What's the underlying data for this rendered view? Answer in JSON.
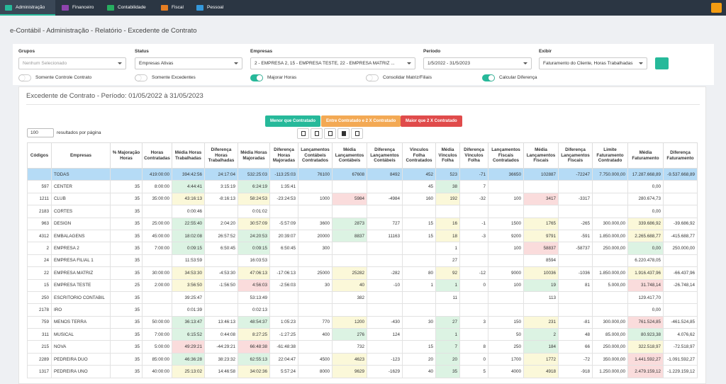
{
  "nav": {
    "tabs": [
      "Administração",
      "Financeiro",
      "Contabilidade",
      "Fiscal",
      "Pessoal"
    ],
    "active": 0
  },
  "breadcrumb": "e-Contábil - Administração - Relatório - Excedente de Contrato",
  "filters": {
    "fields": [
      {
        "label": "Grupos",
        "value": "Nenhum Selecionado"
      },
      {
        "label": "Status",
        "value": "Empresas Ativas"
      },
      {
        "label": "Empresas",
        "value": "2 - EMPRESA 2, 15 - EMPRESA TESTE, 22 - EMPRESA MATRIZ ..."
      },
      {
        "label": "Período",
        "value": "1/5/2022 - 31/5/2023"
      },
      {
        "label": "Exibir",
        "value": "Faturamento do Cliente, Horas Trabalhadas"
      }
    ],
    "toggles": [
      {
        "label": "Somente Controle Contrato",
        "on": false
      },
      {
        "label": "Somente Excedentes",
        "on": false
      },
      {
        "label": "Majorar Horas",
        "on": true
      },
      {
        "label": "Consolidar Matriz/Filiais",
        "on": false
      },
      {
        "label": "Calcular Diferença",
        "on": true
      }
    ]
  },
  "report": {
    "title": "Excedente de Contrato - Período: 01/05/2022 à 31/05/2023",
    "legend": [
      {
        "label": "Menor que Contratado",
        "color": "#26b99a"
      },
      {
        "label": "Entre Contratado e 2 X Contratado",
        "color": "#f3a954"
      },
      {
        "label": "Maior que 2 X Contratado",
        "color": "#e04b4b"
      }
    ],
    "page_size": "100",
    "page_size_label": "resultados por página",
    "tones": {
      "green": "#dcf3e3",
      "yellow": "#fbf8d9",
      "red": "#fadcdc"
    },
    "table": {
      "headers": [
        "Códigos",
        "Empresas",
        "% Majoração Horas",
        "Horas Contratadas",
        "Média Horas Trabalhadas",
        "Diferença Horas Trabalhadas",
        "Média Horas Majoradas",
        "Diferença Horas Majoradas",
        "Lançamentos Contábeis Contratados",
        "Média Lançamentos Contábeis",
        "Diferença Lançamentos Contábeis",
        "Vínculos Folha Contratados",
        "Média Vínculos Folha",
        "Diferença Vínculos Folha",
        "Lançamentos Fiscais Contratados",
        "Média Lançamentos Fiscais",
        "Diferença Lançamentos Fiscais",
        "Limite Faturamento Contratado",
        "Média Faturamento",
        "Diferença Faturamento"
      ],
      "rows": [
        {
          "highlight": "#b5dbf6",
          "cells": [
            null,
            "TODAS",
            null,
            "419:00:00",
            "394:42:56",
            "24:17:04",
            "532:25:03",
            "-113:25:03",
            "76100",
            "67608",
            "8492",
            "452",
            "523",
            "-71",
            "36650",
            "102887",
            "-72247",
            "7.750.000,00",
            "17.287.668,89",
            "-9.537.668,89"
          ]
        },
        {
          "cells": [
            "597",
            "CENTER",
            "35",
            "8:00:00",
            "4:44:41",
            "3:15:19",
            "6:24:19",
            "1:35:41",
            null,
            null,
            null,
            "45",
            "38",
            "7",
            null,
            null,
            null,
            null,
            "0,00",
            null
          ],
          "colors": {
            "4": "green",
            "6": "green",
            "12": "green"
          }
        },
        {
          "cells": [
            "1211",
            "CLUB",
            "35",
            "35:00:00",
            "43:16:13",
            "-8:16:13",
            "58:24:53",
            "-23:24:53",
            "1000",
            "5984",
            "-4984",
            "160",
            "192",
            "-32",
            "100",
            "3417",
            "-3317",
            null,
            "280.674,73",
            null
          ],
          "colors": {
            "4": "yellow",
            "6": "yellow",
            "9": "red",
            "12": "yellow",
            "15": "red"
          }
        },
        {
          "cells": [
            "2183",
            "CORTES",
            "35",
            null,
            "0:00:46",
            null,
            "0:01:02",
            null,
            null,
            null,
            null,
            null,
            null,
            null,
            null,
            null,
            null,
            null,
            "0,00",
            null
          ]
        },
        {
          "cells": [
            "963",
            "DESIGN",
            "35",
            "25:00:00",
            "22:55:40",
            "2:04:20",
            "30:57:09",
            "-5:57:09",
            "3600",
            "2873",
            "727",
            "15",
            "16",
            "-1",
            "1500",
            "1765",
            "-265",
            "300.000,00",
            "339.686,92",
            "-39.686,92"
          ],
          "colors": {
            "4": "green",
            "6": "yellow",
            "9": "green",
            "12": "yellow",
            "15": "yellow",
            "18": "yellow"
          }
        },
        {
          "cells": [
            "4312",
            "EMBALAGENS",
            "35",
            "45:00:00",
            "18:02:08",
            "26:57:52",
            "24:20:53",
            "20:39:07",
            "20000",
            "8837",
            "11163",
            "15",
            "18",
            "-3",
            "9200",
            "9791",
            "-591",
            "1.850.000,00",
            "2.265.688,77",
            "-415.688,77"
          ],
          "colors": {
            "4": "green",
            "6": "green",
            "9": "green",
            "12": "yellow",
            "15": "yellow",
            "18": "yellow"
          }
        },
        {
          "cells": [
            "2",
            "EMPRESA 2",
            "35",
            "7:00:00",
            "0:09:15",
            "6:50:45",
            "0:09:15",
            "6:50:45",
            "300",
            null,
            null,
            null,
            "1",
            null,
            "100",
            "58837",
            "-58737",
            "250.000,00",
            "0,00",
            "250.000,00"
          ],
          "colors": {
            "4": "green",
            "6": "green",
            "15": "red",
            "18": "green"
          }
        },
        {
          "cells": [
            "24",
            "EMPRESA FILIAL 1",
            "35",
            null,
            "11:53:59",
            null,
            "16:03:53",
            null,
            null,
            null,
            null,
            null,
            "27",
            null,
            null,
            "8594",
            null,
            null,
            "6.220.478,05",
            null
          ]
        },
        {
          "cells": [
            "22",
            "EMPRESA MATRIZ",
            "35",
            "30:00:00",
            "34:53:30",
            "-4:53:30",
            "47:06:13",
            "-17:06:13",
            "25000",
            "25282",
            "-282",
            "80",
            "92",
            "-12",
            "9000",
            "10036",
            "-1036",
            "1.850.000,00",
            "1.916.437,96",
            "-66.437,96"
          ],
          "colors": {
            "4": "yellow",
            "6": "yellow",
            "9": "yellow",
            "12": "yellow",
            "15": "yellow",
            "18": "yellow"
          }
        },
        {
          "cells": [
            "15",
            "EMPRESA TESTE",
            "25",
            "2:00:00",
            "3:56:50",
            "-1:56:50",
            "4:56:03",
            "-2:56:03",
            "30",
            "40",
            "-10",
            "1",
            "1",
            "0",
            "100",
            "19",
            "81",
            "5.000,00",
            "31.748,14",
            "-26.748,14"
          ],
          "colors": {
            "4": "yellow",
            "6": "red",
            "9": "yellow",
            "12": "green",
            "15": "green",
            "18": "red"
          }
        },
        {
          "cells": [
            "250",
            "ESCRITORIO CONTABIL",
            "35",
            null,
            "39:25:47",
            null,
            "53:13:49",
            null,
            null,
            "382",
            null,
            null,
            "11",
            null,
            null,
            "113",
            null,
            null,
            "129.417,70",
            null
          ]
        },
        {
          "cells": [
            "2178",
            "IRO",
            "35",
            null,
            "0:01:39",
            null,
            "0:02:13",
            null,
            null,
            null,
            null,
            null,
            null,
            null,
            null,
            null,
            null,
            null,
            "0,00",
            null
          ]
        },
        {
          "cells": [
            "759",
            "MENOS TERRA",
            "35",
            "50:00:00",
            "36:13:47",
            "13:46:13",
            "48:54:37",
            "1:05:23",
            "770",
            "1200",
            "-430",
            "30",
            "27",
            "3",
            "150",
            "231",
            "-81",
            "300.000,00",
            "761.524,85",
            "-461.524,85"
          ],
          "colors": {
            "4": "green",
            "6": "green",
            "9": "yellow",
            "12": "green",
            "15": "yellow",
            "18": "red"
          }
        },
        {
          "cells": [
            "311",
            "MUSICAL",
            "35",
            "7:00:00",
            "6:15:52",
            "0:44:08",
            "8:27:25",
            "-1:27:25",
            "400",
            "276",
            "124",
            null,
            "1",
            null,
            "50",
            "2",
            "48",
            "85.000,00",
            "80.923,38",
            "4.076,62"
          ],
          "colors": {
            "4": "green",
            "6": "yellow",
            "9": "green",
            "12": "green",
            "15": "green",
            "18": "green"
          }
        },
        {
          "cells": [
            "215",
            "NOVA",
            "35",
            "5:00:00",
            "49:29:21",
            "-44:29:21",
            "66:48:38",
            "-61:48:38",
            null,
            "732",
            null,
            "15",
            "7",
            "8",
            "250",
            "184",
            "66",
            "250.000,00",
            "322.518,97",
            "-72.518,97"
          ],
          "colors": {
            "4": "red",
            "6": "red",
            "12": "green",
            "15": "green",
            "18": "yellow"
          }
        },
        {
          "cells": [
            "2289",
            "PEDREIRA DUO",
            "35",
            "85:00:00",
            "46:36:28",
            "38:23:32",
            "62:55:13",
            "22:04:47",
            "4500",
            "4623",
            "-123",
            "20",
            "20",
            "0",
            "1700",
            "1772",
            "-72",
            "350.000,00",
            "1.441.592,27",
            "-1.091.592,27"
          ],
          "colors": {
            "4": "green",
            "6": "green",
            "9": "yellow",
            "12": "green",
            "15": "yellow",
            "18": "red"
          }
        },
        {
          "cells": [
            "1317",
            "PEDREIRA UNO",
            "35",
            "40:00:00",
            "25:13:02",
            "14:46:58",
            "34:02:36",
            "5:57:24",
            "8000",
            "9629",
            "-1629",
            "40",
            "35",
            "5",
            "4000",
            "4918",
            "-918",
            "1.250.000,00",
            "2.479.159,12",
            "-1.229.159,12"
          ],
          "colors": {
            "4": "yellow",
            "6": "yellow",
            "9": "yellow",
            "12": "green",
            "15": "yellow",
            "18": "red"
          }
        }
      ]
    }
  }
}
